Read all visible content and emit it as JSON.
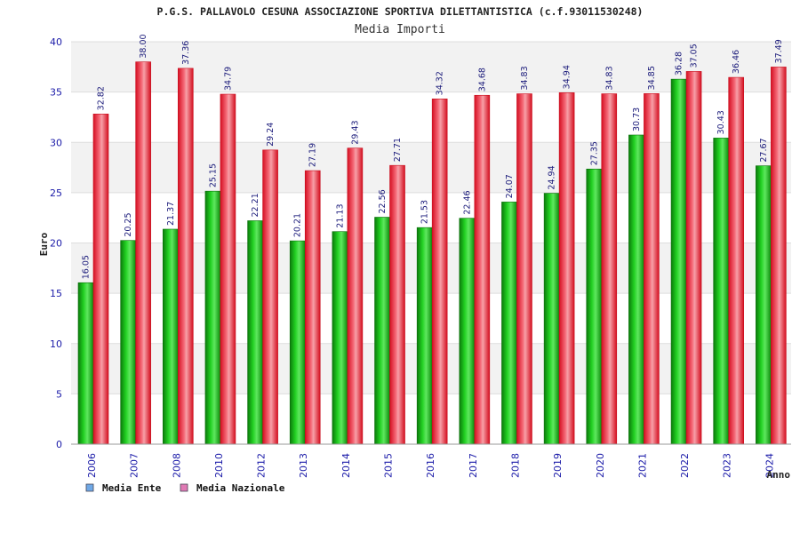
{
  "chart_data": {
    "type": "bar",
    "title": "P.G.S. PALLAVOLO CESUNA ASSOCIAZIONE SPORTIVA DILETTANTISTICA (c.f.93011530248)",
    "subtitle": "Media Importi",
    "xlabel": "Anno",
    "ylabel": "Euro",
    "ylim": [
      0,
      40
    ],
    "yticks": [
      0,
      5,
      10,
      15,
      20,
      25,
      30,
      35,
      40
    ],
    "grid": true,
    "legend_position": "bottom-left",
    "categories": [
      "2006",
      "2007",
      "2008",
      "2010",
      "2012",
      "2013",
      "2014",
      "2015",
      "2016",
      "2017",
      "2018",
      "2019",
      "2020",
      "2021",
      "2022",
      "2023",
      "2024"
    ],
    "series": [
      {
        "name": "Media Ente",
        "color": "#13a613",
        "legend_color": "#6fa8e6",
        "values": [
          16.05,
          20.25,
          21.37,
          25.15,
          22.21,
          20.21,
          21.13,
          22.56,
          21.53,
          22.46,
          24.07,
          24.94,
          27.35,
          30.73,
          36.28,
          30.43,
          27.67
        ],
        "labels": [
          "16.05",
          "20.25",
          "21.37",
          "25.15",
          "22.21",
          "20.21",
          "21.13",
          "22.56",
          "21.53",
          "22.46",
          "24.07",
          "24.94",
          "27.35",
          "30.73",
          "36.28",
          "30.43",
          "27.67"
        ]
      },
      {
        "name": "Media Nazionale",
        "color": "#e8192b",
        "legend_color": "#e07ab4",
        "values": [
          32.82,
          38.0,
          37.36,
          34.79,
          29.24,
          27.19,
          29.43,
          27.71,
          34.32,
          34.68,
          34.83,
          34.94,
          34.83,
          34.85,
          37.05,
          36.46,
          37.49
        ],
        "labels": [
          "32.82",
          "38.00",
          "37.36",
          "34.79",
          "29.24",
          "27.19",
          "29.43",
          "27.71",
          "34.32",
          "34.68",
          "34.83",
          "34.94",
          "34.83",
          "34.85",
          "37.05",
          "36.46",
          "37.49"
        ]
      }
    ]
  }
}
